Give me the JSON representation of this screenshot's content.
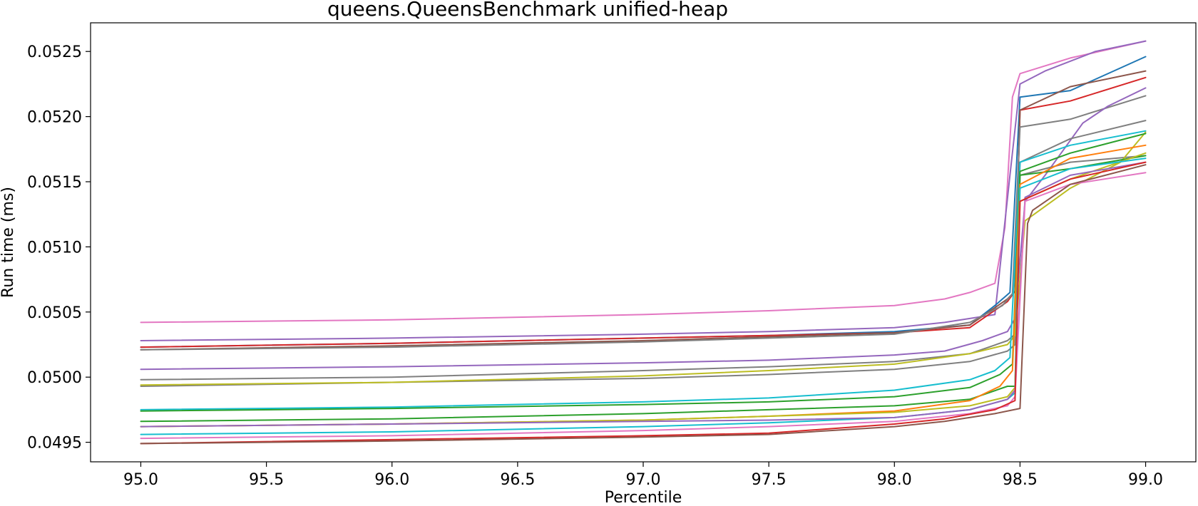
{
  "chart_data": {
    "type": "line",
    "title": "queens.QueensBenchmark unified-heap",
    "xlabel": "Percentile",
    "ylabel": "Run time (ms)",
    "xlim": [
      94.8,
      99.2
    ],
    "ylim": [
      0.04935,
      0.05272
    ],
    "xticks": [
      95.0,
      95.5,
      96.0,
      96.5,
      97.0,
      97.5,
      98.0,
      98.5,
      99.0
    ],
    "xtick_labels": [
      "95.0",
      "95.5",
      "96.0",
      "96.5",
      "97.0",
      "97.5",
      "98.0",
      "98.5",
      "99.0"
    ],
    "yticks": [
      0.0495,
      0.05,
      0.0505,
      0.051,
      0.0515,
      0.052,
      0.0525
    ],
    "ytick_labels": [
      "0.0495",
      "0.0500",
      "0.0505",
      "0.0510",
      "0.0515",
      "0.0520",
      "0.0525"
    ],
    "grid": false,
    "legend": "none",
    "series": [
      {
        "color": "#e377c2",
        "x": [
          95.0,
          96.0,
          97.0,
          97.5,
          98.0,
          98.2,
          98.3,
          98.4,
          98.44,
          98.47,
          98.5,
          98.7,
          99.0
        ],
        "y": [
          0.05042,
          0.05044,
          0.05048,
          0.05051,
          0.05055,
          0.0506,
          0.05065,
          0.05072,
          0.05115,
          0.05215,
          0.05233,
          0.05245,
          0.05258
        ]
      },
      {
        "color": "#9467bd",
        "x": [
          95.0,
          96.0,
          97.0,
          97.5,
          98.0,
          98.2,
          98.4,
          98.46,
          98.5,
          98.6,
          98.8,
          99.0
        ],
        "y": [
          0.05028,
          0.0503,
          0.05033,
          0.05035,
          0.05038,
          0.05042,
          0.05048,
          0.05155,
          0.05225,
          0.05235,
          0.0525,
          0.05258
        ]
      },
      {
        "color": "#1f77b4",
        "x": [
          95.0,
          96.0,
          97.0,
          97.5,
          98.0,
          98.3,
          98.4,
          98.46,
          98.5,
          98.7,
          99.0
        ],
        "y": [
          0.05023,
          0.05026,
          0.0503,
          0.05032,
          0.05035,
          0.0504,
          0.05055,
          0.05065,
          0.05215,
          0.0522,
          0.05246
        ]
      },
      {
        "color": "#d62728",
        "x": [
          95.0,
          96.0,
          97.0,
          97.5,
          98.0,
          98.3,
          98.45,
          98.48,
          98.5,
          98.7,
          99.0
        ],
        "y": [
          0.05023,
          0.05026,
          0.0503,
          0.05032,
          0.05034,
          0.05038,
          0.05058,
          0.05066,
          0.05205,
          0.05212,
          0.0523
        ]
      },
      {
        "color": "#8c564b",
        "x": [
          95.0,
          96.0,
          97.0,
          97.5,
          98.0,
          98.3,
          98.45,
          98.48,
          98.5,
          98.7,
          99.0
        ],
        "y": [
          0.05021,
          0.05024,
          0.05028,
          0.05031,
          0.05034,
          0.0504,
          0.0506,
          0.05066,
          0.05205,
          0.05223,
          0.05235
        ]
      },
      {
        "color": "#7f7f7f",
        "x": [
          95.0,
          96.0,
          97.0,
          97.5,
          98.0,
          98.3,
          98.43,
          98.47,
          98.5,
          98.7,
          99.0
        ],
        "y": [
          0.05021,
          0.05023,
          0.05027,
          0.0503,
          0.05033,
          0.05042,
          0.05055,
          0.05064,
          0.05192,
          0.05198,
          0.05216
        ]
      },
      {
        "color": "#9467bd",
        "x": [
          95.0,
          96.0,
          97.0,
          97.5,
          98.0,
          98.2,
          98.35,
          98.45,
          98.48,
          98.52,
          98.6,
          98.75,
          98.85,
          99.0
        ],
        "y": [
          0.05006,
          0.05008,
          0.05011,
          0.05013,
          0.05017,
          0.0502,
          0.05028,
          0.05035,
          0.05045,
          0.05135,
          0.05155,
          0.05195,
          0.05208,
          0.05222
        ]
      },
      {
        "color": "#7f7f7f",
        "x": [
          95.0,
          96.0,
          97.0,
          97.5,
          98.0,
          98.3,
          98.45,
          98.48,
          98.5,
          98.7,
          99.0
        ],
        "y": [
          0.04998,
          0.05,
          0.05005,
          0.05008,
          0.05012,
          0.05018,
          0.05028,
          0.05033,
          0.05165,
          0.05183,
          0.05197
        ]
      },
      {
        "color": "#7f7f7f",
        "x": [
          95.0,
          96.0,
          97.0,
          97.5,
          98.0,
          98.3,
          98.45,
          98.48,
          98.5,
          98.7,
          99.0
        ],
        "y": [
          0.04993,
          0.04996,
          0.04999,
          0.05002,
          0.05006,
          0.05012,
          0.0502,
          0.05025,
          0.05155,
          0.05165,
          0.0517
        ]
      },
      {
        "color": "#bcbd22",
        "x": [
          95.0,
          96.0,
          97.0,
          97.5,
          98.0,
          98.3,
          98.45,
          98.48,
          98.52,
          98.7,
          98.9,
          99.0
        ],
        "y": [
          0.04994,
          0.04996,
          0.05001,
          0.05005,
          0.0501,
          0.05018,
          0.05025,
          0.05032,
          0.0512,
          0.05145,
          0.05165,
          0.05188
        ]
      },
      {
        "color": "#17becf",
        "x": [
          95.0,
          96.0,
          97.0,
          97.5,
          98.0,
          98.3,
          98.4,
          98.46,
          98.5,
          98.7,
          99.0
        ],
        "y": [
          0.04975,
          0.04977,
          0.04981,
          0.04984,
          0.0499,
          0.04998,
          0.05005,
          0.05015,
          0.05165,
          0.05178,
          0.05189
        ]
      },
      {
        "color": "#2ca02c",
        "x": [
          95.0,
          96.0,
          97.0,
          97.5,
          98.0,
          98.3,
          98.42,
          98.47,
          98.5,
          98.7,
          99.0
        ],
        "y": [
          0.04974,
          0.04976,
          0.04979,
          0.04981,
          0.04985,
          0.04992,
          0.05002,
          0.0501,
          0.05158,
          0.05172,
          0.05187
        ]
      },
      {
        "color": "#2ca02c",
        "x": [
          95.0,
          96.0,
          97.0,
          97.5,
          98.0,
          98.3,
          98.45,
          98.48,
          98.5,
          98.7,
          99.0
        ],
        "y": [
          0.04966,
          0.04968,
          0.04972,
          0.04975,
          0.04978,
          0.04983,
          0.04993,
          0.04993,
          0.05155,
          0.0516,
          0.0517
        ]
      },
      {
        "color": "#ff7f0e",
        "x": [
          95.0,
          96.0,
          97.0,
          97.5,
          98.0,
          98.3,
          98.42,
          98.47,
          98.5,
          98.7,
          99.0
        ],
        "y": [
          0.04962,
          0.04964,
          0.04967,
          0.0497,
          0.04974,
          0.04982,
          0.04993,
          0.05005,
          0.05148,
          0.05168,
          0.05178
        ]
      },
      {
        "color": "#bcbd22",
        "x": [
          95.0,
          96.0,
          97.0,
          97.5,
          98.0,
          98.3,
          98.45,
          98.48,
          98.5,
          98.7,
          99.0
        ],
        "y": [
          0.04962,
          0.04964,
          0.04967,
          0.0497,
          0.04973,
          0.04978,
          0.04985,
          0.04992,
          0.05135,
          0.05152,
          0.05172
        ]
      },
      {
        "color": "#17becf",
        "x": [
          95.0,
          96.0,
          97.0,
          97.5,
          98.0,
          98.3,
          98.45,
          98.48,
          98.5,
          98.7,
          99.0
        ],
        "y": [
          0.04956,
          0.04958,
          0.04962,
          0.04965,
          0.04969,
          0.04975,
          0.04983,
          0.04988,
          0.05145,
          0.0516,
          0.05168
        ]
      },
      {
        "color": "#9467bd",
        "x": [
          95.0,
          96.0,
          97.0,
          97.5,
          98.0,
          98.3,
          98.45,
          98.48,
          98.52,
          98.7,
          99.0
        ],
        "y": [
          0.04962,
          0.04964,
          0.04966,
          0.04967,
          0.04969,
          0.04975,
          0.04983,
          0.0499,
          0.05138,
          0.05155,
          0.05165
        ]
      },
      {
        "color": "#e377c2",
        "x": [
          95.0,
          96.0,
          97.0,
          97.5,
          98.0,
          98.3,
          98.45,
          98.48,
          98.52,
          98.7,
          99.0
        ],
        "y": [
          0.04953,
          0.04955,
          0.04959,
          0.04962,
          0.04966,
          0.04972,
          0.04978,
          0.04985,
          0.05135,
          0.05148,
          0.05157
        ]
      },
      {
        "color": "#d62728",
        "x": [
          95.0,
          96.0,
          97.0,
          97.5,
          98.0,
          98.2,
          98.4,
          98.48,
          98.5,
          98.7,
          99.0
        ],
        "y": [
          0.04949,
          0.04952,
          0.04955,
          0.04957,
          0.04964,
          0.04968,
          0.04975,
          0.04982,
          0.05135,
          0.05152,
          0.05165
        ]
      },
      {
        "color": "#8c564b",
        "x": [
          95.0,
          96.0,
          97.0,
          97.5,
          98.0,
          98.2,
          98.4,
          98.5,
          98.53,
          98.55,
          98.7,
          99.0
        ],
        "y": [
          0.04949,
          0.04951,
          0.04954,
          0.04956,
          0.04962,
          0.04966,
          0.04972,
          0.04976,
          0.05118,
          0.05128,
          0.05148,
          0.05163
        ]
      }
    ]
  }
}
